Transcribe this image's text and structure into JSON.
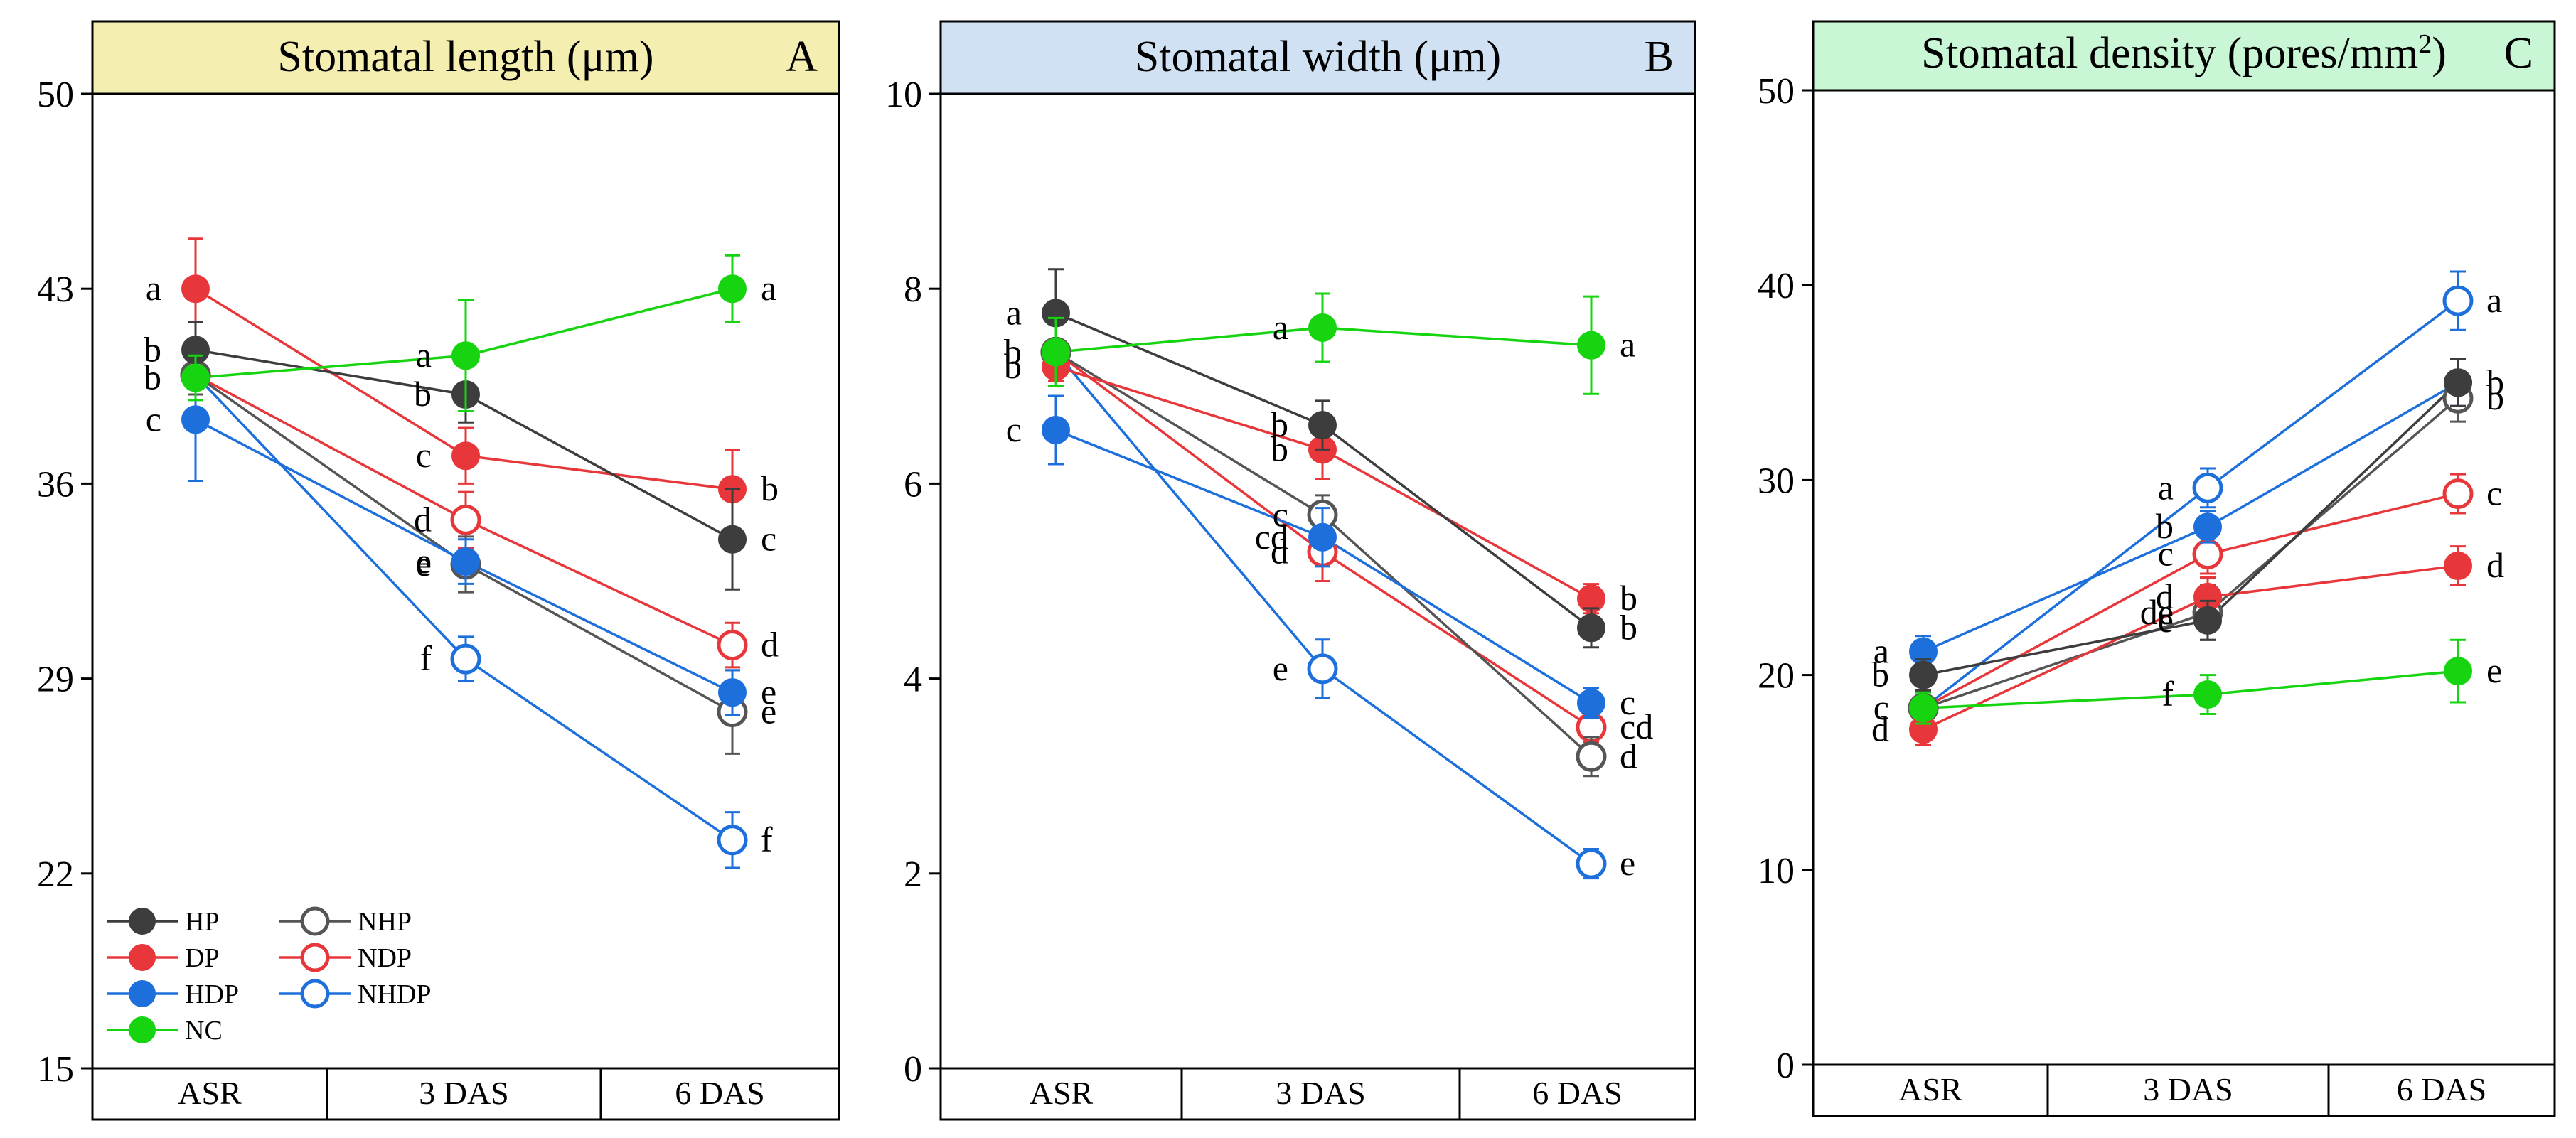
{
  "colors": {
    "HP": "#3d3d3d",
    "DP": "#e8373b",
    "HDP": "#1d6fdc",
    "NC": "#16d40f",
    "NHP": "#555555",
    "NDP": "#e8373b",
    "NHDP": "#1d6fdc",
    "header_A": "#f4eeb1",
    "header_B": "#cfe1f3",
    "header_C": "#c9f6d5"
  },
  "chart_data": [
    {
      "type": "line",
      "panel": "A",
      "title": "Stomatal length (μm)",
      "letter": "A",
      "categories": [
        "ASR",
        "3 DAS",
        "6 DAS"
      ],
      "ylim": [
        15,
        50
      ],
      "yticks": [
        15,
        22,
        29,
        36,
        43,
        50
      ],
      "series": [
        {
          "name": "HP",
          "filled": true,
          "values": [
            40.8,
            39.2,
            34.0
          ],
          "errors": [
            1.0,
            1.0,
            1.8
          ],
          "labels": [
            "b",
            "b",
            "c"
          ]
        },
        {
          "name": "DP",
          "filled": true,
          "values": [
            43.0,
            37.0,
            35.8
          ],
          "errors": [
            1.8,
            1.0,
            1.4
          ],
          "labels": [
            "a",
            "c",
            "b"
          ]
        },
        {
          "name": "HDP",
          "filled": true,
          "values": [
            38.3,
            33.2,
            28.5
          ],
          "errors": [
            2.2,
            0.8,
            0.8
          ],
          "labels": [
            "c",
            "e",
            "e"
          ]
        },
        {
          "name": "NC",
          "filled": true,
          "values": [
            39.8,
            40.6,
            43.0
          ],
          "errors": [
            0.8,
            2.0,
            1.2
          ],
          "labels": [
            "b",
            "a",
            "a"
          ]
        },
        {
          "name": "NHP",
          "filled": false,
          "values": [
            39.9,
            33.1,
            27.8
          ],
          "errors": [
            0.7,
            1.0,
            1.5
          ],
          "labels": [
            "",
            "e",
            "e"
          ]
        },
        {
          "name": "NDP",
          "filled": false,
          "values": [
            39.9,
            34.7,
            30.2
          ],
          "errors": [
            0.7,
            1.0,
            0.8
          ],
          "labels": [
            "",
            "d",
            "d"
          ]
        },
        {
          "name": "NHDP",
          "filled": false,
          "values": [
            39.9,
            29.7,
            23.2
          ],
          "errors": [
            0.7,
            0.8,
            1.0
          ],
          "labels": [
            "",
            "f",
            "f"
          ]
        }
      ],
      "legend": [
        "HP",
        "DP",
        "HDP",
        "NC",
        "NHP",
        "NDP",
        "NHDP"
      ]
    },
    {
      "type": "line",
      "panel": "B",
      "title": "Stomatal width (μm)",
      "letter": "B",
      "categories": [
        "ASR",
        "3 DAS",
        "6 DAS"
      ],
      "ylim": [
        0,
        10
      ],
      "yticks": [
        0,
        2,
        4,
        6,
        8,
        10
      ],
      "series": [
        {
          "name": "HP",
          "filled": true,
          "values": [
            7.75,
            6.6,
            4.52
          ],
          "errors": [
            0.45,
            0.25,
            0.2
          ],
          "labels": [
            "a",
            "b",
            "b"
          ]
        },
        {
          "name": "DP",
          "filled": true,
          "values": [
            7.2,
            6.35,
            4.82
          ],
          "errors": [
            0.15,
            0.3,
            0.15
          ],
          "labels": [
            "b",
            "b",
            "b"
          ]
        },
        {
          "name": "HDP",
          "filled": true,
          "values": [
            6.55,
            5.45,
            3.75
          ],
          "errors": [
            0.35,
            0.3,
            0.15
          ],
          "labels": [
            "c",
            "cd",
            "c"
          ]
        },
        {
          "name": "NC",
          "filled": true,
          "values": [
            7.35,
            7.6,
            7.42
          ],
          "errors": [
            0.35,
            0.35,
            0.5
          ],
          "labels": [
            "b",
            "a",
            "a"
          ]
        },
        {
          "name": "NHP",
          "filled": false,
          "values": [
            7.35,
            5.68,
            3.2
          ],
          "errors": [
            0.1,
            0.2,
            0.2
          ],
          "labels": [
            "",
            "c",
            "d"
          ]
        },
        {
          "name": "NDP",
          "filled": false,
          "values": [
            7.35,
            5.3,
            3.5
          ],
          "errors": [
            0.1,
            0.3,
            0.15
          ],
          "labels": [
            "",
            "d",
            "cd"
          ]
        },
        {
          "name": "NHDP",
          "filled": false,
          "values": [
            7.35,
            4.1,
            2.1
          ],
          "errors": [
            0.1,
            0.3,
            0.15
          ],
          "labels": [
            "",
            "e",
            "e"
          ]
        }
      ]
    },
    {
      "type": "line",
      "panel": "C",
      "title": "Stomatal density (pores/mm",
      "title_sup": "2",
      "title_end": ")",
      "letter": "C",
      "categories": [
        "ASR",
        "3 DAS",
        "6 DAS"
      ],
      "ylim": [
        0,
        50
      ],
      "yticks": [
        0,
        10,
        20,
        30,
        40,
        50
      ],
      "series": [
        {
          "name": "HP",
          "filled": true,
          "values": [
            20.0,
            22.8,
            35.0
          ],
          "errors": [
            0.8,
            1.0,
            1.2
          ],
          "labels": [
            "b",
            "e",
            "b"
          ]
        },
        {
          "name": "DP",
          "filled": true,
          "values": [
            17.2,
            24.0,
            25.6
          ],
          "errors": [
            0.8,
            1.0,
            1.0
          ],
          "labels": [
            "d",
            "d",
            "d"
          ]
        },
        {
          "name": "HDP",
          "filled": true,
          "values": [
            21.2,
            27.6,
            35.0
          ],
          "errors": [
            0.8,
            0.8,
            1.2
          ],
          "labels": [
            "a",
            "b",
            ""
          ]
        },
        {
          "name": "NC",
          "filled": true,
          "values": [
            18.3,
            19.0,
            20.2
          ],
          "errors": [
            0.8,
            1.0,
            1.6
          ],
          "labels": [
            "c",
            "f",
            "e"
          ]
        },
        {
          "name": "NHP",
          "filled": false,
          "values": [
            18.3,
            23.2,
            34.2
          ],
          "errors": [
            0.5,
            1.4,
            1.2
          ],
          "labels": [
            "",
            "de",
            "b"
          ]
        },
        {
          "name": "NDP",
          "filled": false,
          "values": [
            18.3,
            26.2,
            29.3
          ],
          "errors": [
            0.5,
            1.0,
            1.0
          ],
          "labels": [
            "",
            "c",
            "c"
          ]
        },
        {
          "name": "NHDP",
          "filled": false,
          "values": [
            18.3,
            29.6,
            39.2
          ],
          "errors": [
            0.5,
            1.0,
            1.5
          ],
          "labels": [
            "",
            "a",
            "a"
          ]
        }
      ]
    }
  ]
}
